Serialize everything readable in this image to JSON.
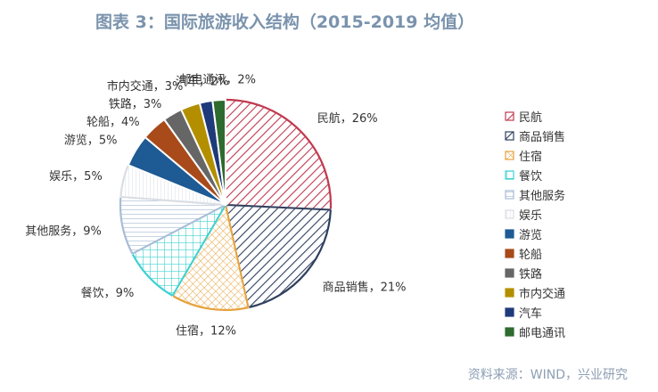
{
  "title": "图表 3：国际旅游收入结构（2015-2019 均值）",
  "source": "资料来源：WIND，兴业研究",
  "chart_data": {
    "type": "pie",
    "title": "图表 3：国际旅游收入结构（2015-2019 均值）",
    "legend_position": "right",
    "slices": [
      {
        "name": "民航",
        "value": 26,
        "label": "民航，26%",
        "color": "#c0394f",
        "fill": "hatch"
      },
      {
        "name": "商品销售",
        "value": 21,
        "label": "商品销售，21%",
        "color": "#2e3f5e",
        "fill": "hatch"
      },
      {
        "name": "住宿",
        "value": 12,
        "label": "住宿，12%",
        "color": "#e6a23c",
        "fill": "crosshatch"
      },
      {
        "name": "餐饮",
        "value": 9,
        "label": "餐饮，9%",
        "color": "#3dd1d1",
        "fill": "grid"
      },
      {
        "name": "其他服务",
        "value": 9,
        "label": "其他服务，9%",
        "color": "#a8bcd6",
        "fill": "hlines"
      },
      {
        "name": "娱乐",
        "value": 5,
        "label": "娱乐，5%",
        "color": "#d9dde3",
        "fill": "vlines"
      },
      {
        "name": "游览",
        "value": 5,
        "label": "游览，5%",
        "color": "#1e5a94",
        "fill": "solid"
      },
      {
        "name": "轮船",
        "value": 4,
        "label": "轮船，4%",
        "color": "#a84a1a",
        "fill": "solid"
      },
      {
        "name": "铁路",
        "value": 3,
        "label": "铁路，3%",
        "color": "#666666",
        "fill": "solid"
      },
      {
        "name": "市内交通",
        "value": 3,
        "label": "市内交通，3%",
        "color": "#b38f00",
        "fill": "solid"
      },
      {
        "name": "汽车",
        "value": 2,
        "label": "汽车，2%",
        "color": "#1f3a7a",
        "fill": "solid"
      },
      {
        "name": "邮电通讯",
        "value": 2,
        "label": "邮电通讯，2%",
        "color": "#2e6b2e",
        "fill": "solid"
      }
    ]
  }
}
